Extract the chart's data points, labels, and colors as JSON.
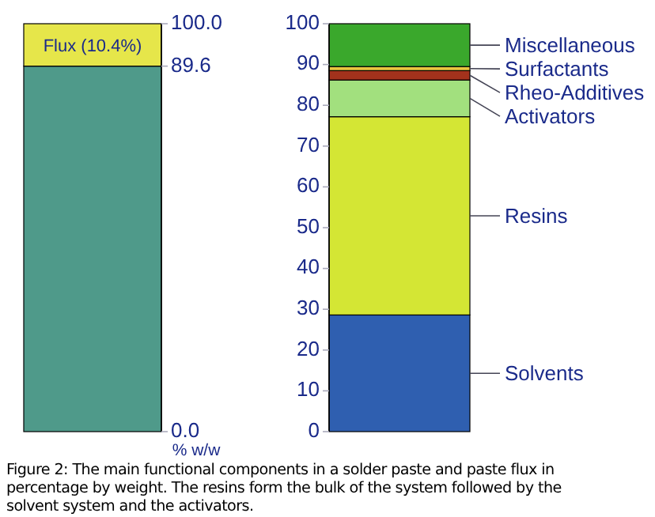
{
  "chart_data": [
    {
      "type": "bar",
      "stacked": true,
      "categories": [
        null
      ],
      "ylim": [
        0,
        100
      ],
      "yticks": [
        {
          "value": 0,
          "label": "0.0"
        },
        {
          "value": 89.6,
          "label": "89.6"
        },
        {
          "value": 100,
          "label": "100.0"
        }
      ],
      "ylabel": "% w/w",
      "series": [
        {
          "color": "#4f9a8a",
          "values": [
            89.6
          ]
        },
        {
          "name": "Flux (10.4%)",
          "color": "#e6e64a",
          "values": [
            10.4
          ]
        }
      ],
      "annotations": [
        "Figure 2: The main functional components in a solder paste and paste flux in percentage by weight. The resins form the bulk of the system followed by the solvent system and the activators."
      ]
    },
    {
      "type": "bar",
      "stacked": true,
      "categories": [
        null
      ],
      "ylim": [
        0,
        100
      ],
      "yticks": [
        0,
        10,
        20,
        30,
        40,
        50,
        60,
        70,
        80,
        90,
        100
      ],
      "legend": "right",
      "series": [
        {
          "name": "Solvents",
          "color": "#2f5fb0",
          "values": [
            28.6
          ]
        },
        {
          "name": "Resins",
          "color": "#d4e634",
          "values": [
            48.6
          ]
        },
        {
          "name": "Activators",
          "color": "#a2e07e",
          "values": [
            9.0
          ]
        },
        {
          "name": "Rheo-Additives",
          "color": "#a3321c",
          "values": [
            2.3
          ]
        },
        {
          "name": "Surfactants",
          "color": "#e8c640",
          "values": [
            1.0
          ]
        },
        {
          "name": "Miscellaneous",
          "color": "#3aa82c",
          "values": [
            10.5
          ]
        }
      ]
    }
  ]
}
